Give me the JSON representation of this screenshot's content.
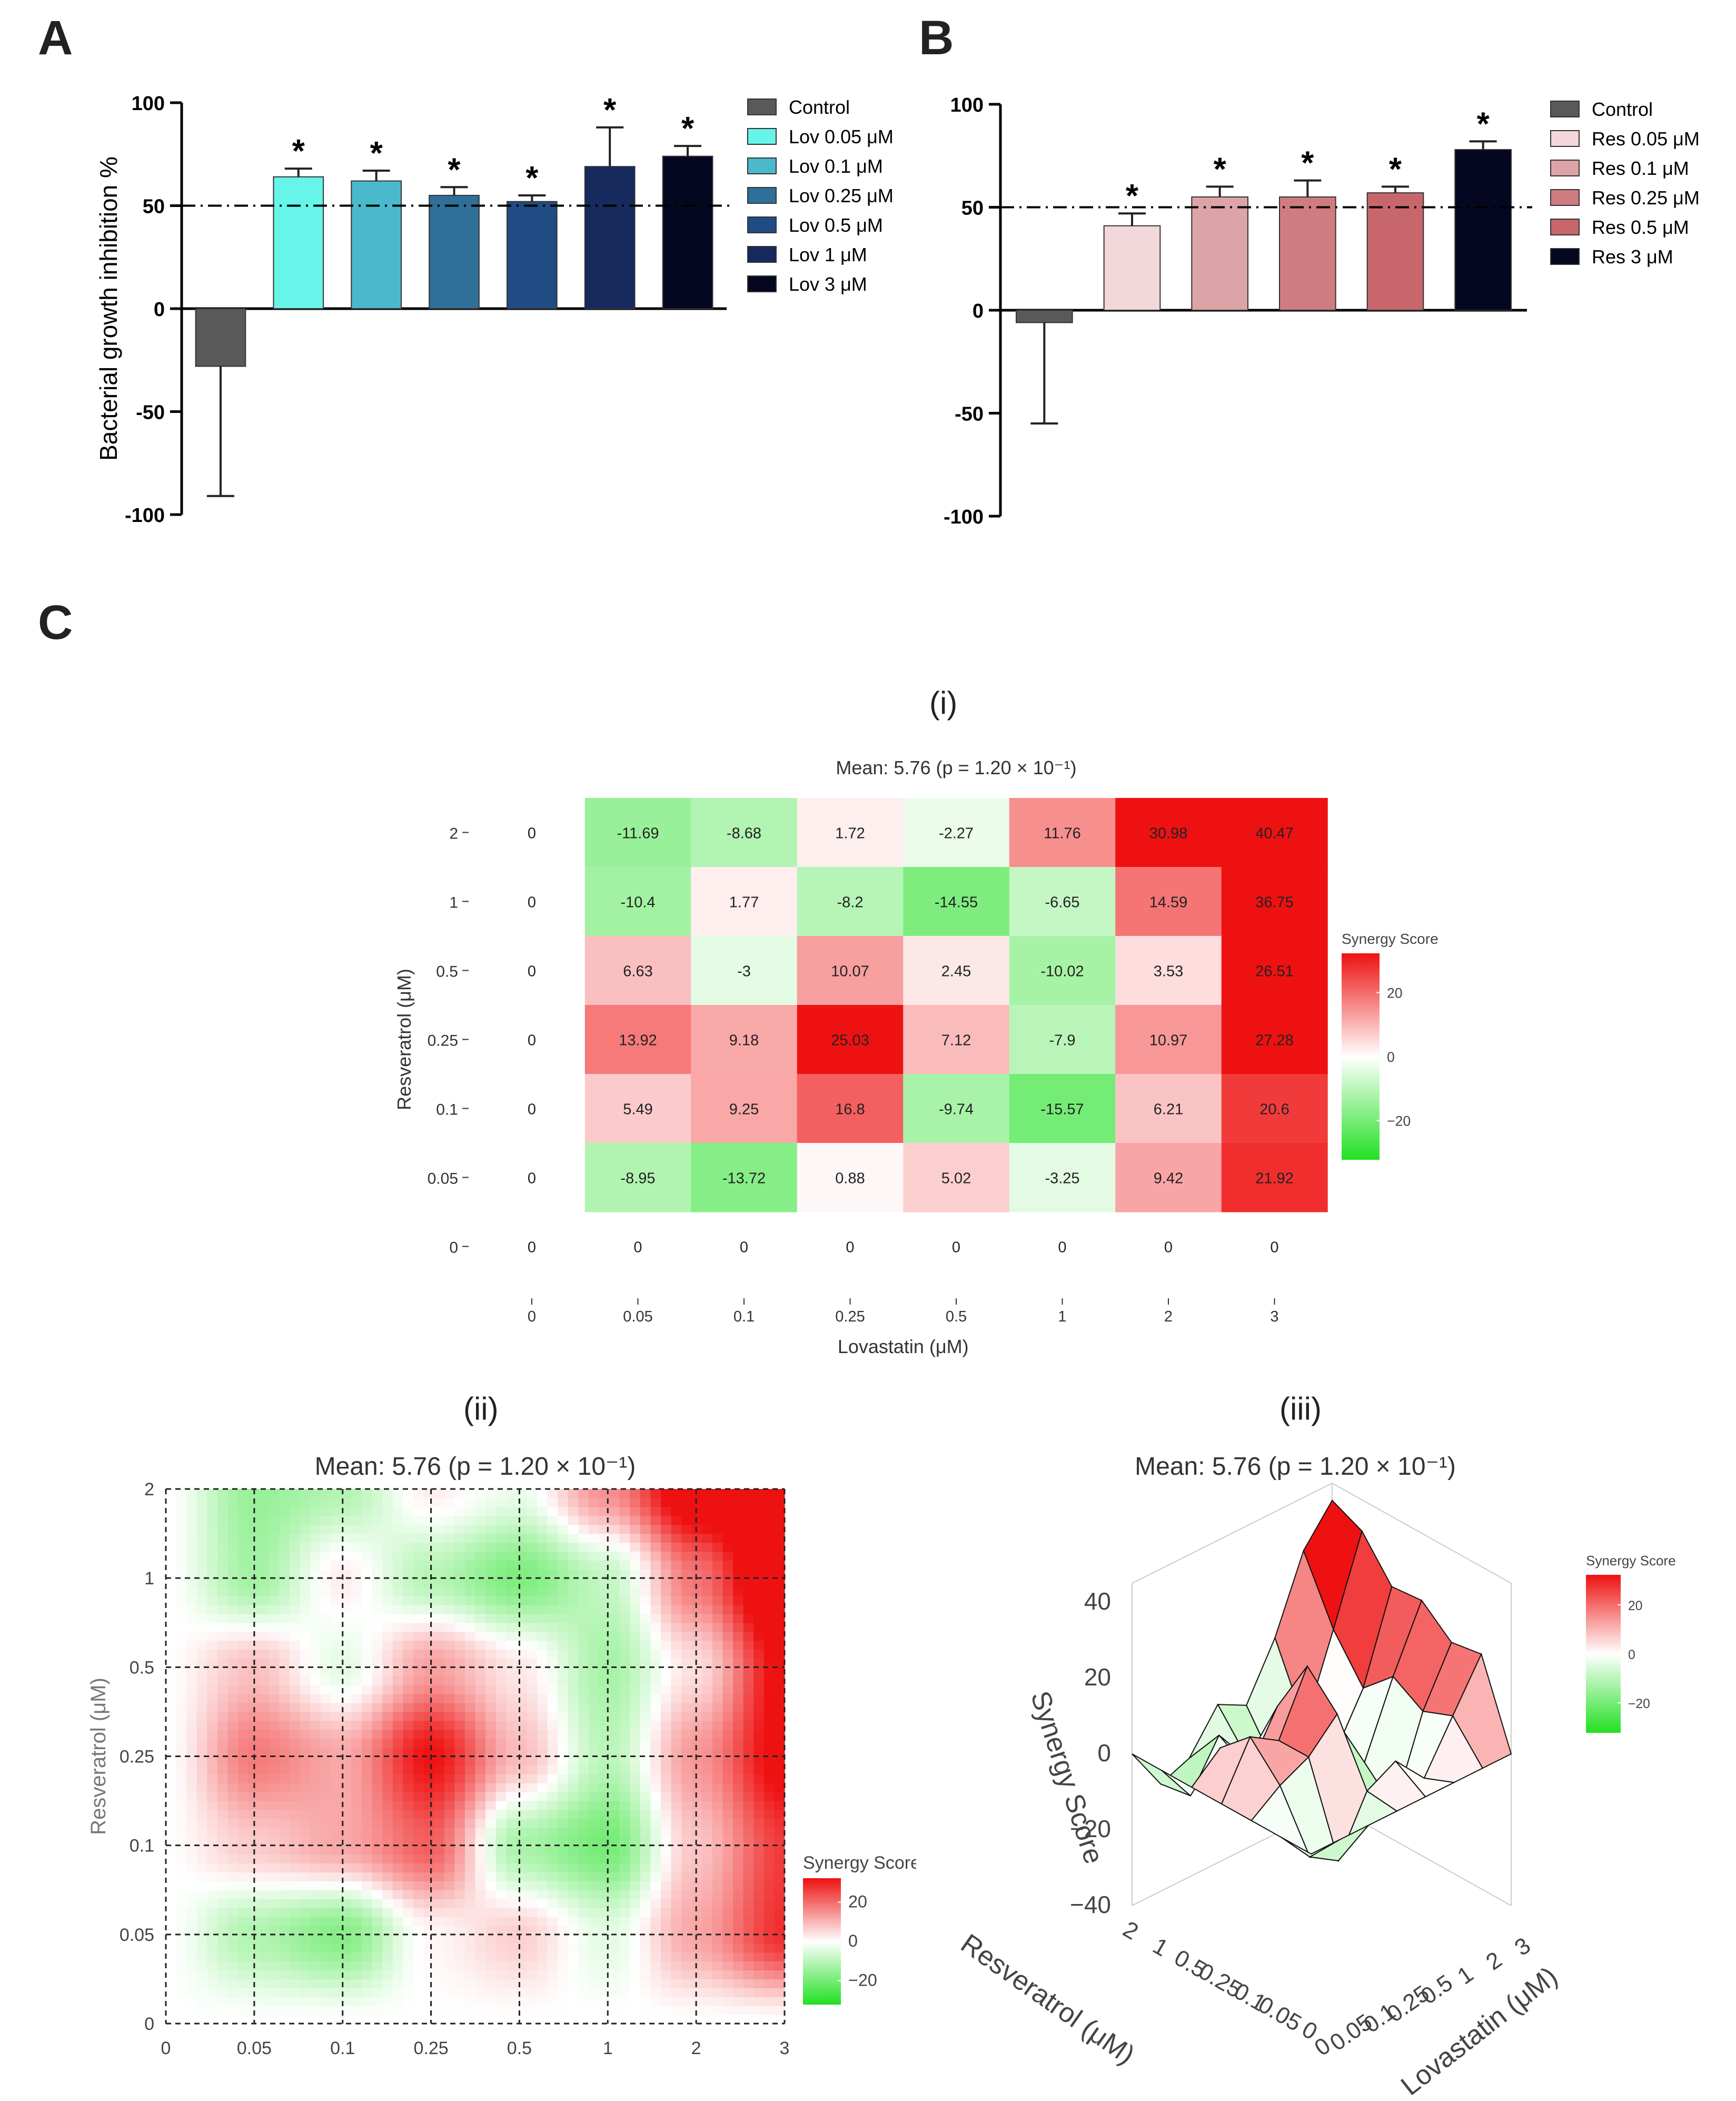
{
  "panels": {
    "a": "A",
    "b": "B",
    "c": "C",
    "i": "(i)",
    "ii": "(ii)",
    "iii": "(iii)"
  },
  "chart_data": [
    {
      "id": "A",
      "type": "bar",
      "ylabel": "Bacterial growth inhibition %",
      "ylim": [
        -100,
        100
      ],
      "yticks": [
        "100",
        "50",
        "0",
        "-50",
        "-100"
      ],
      "threshold": 50,
      "legend_position": "right",
      "star": "*",
      "series": [
        {
          "name": "Control",
          "value": -28,
          "err": 63,
          "color": "#595959",
          "star": false
        },
        {
          "name": "Lov 0.05 μM",
          "value": 64,
          "err": 4,
          "color": "#66f5e8",
          "star": true
        },
        {
          "name": "Lov 0.1 μM",
          "value": 62,
          "err": 5,
          "color": "#4ab9cb",
          "star": true
        },
        {
          "name": "Lov 0.25 μM",
          "value": 55,
          "err": 4,
          "color": "#2f6f99",
          "star": true
        },
        {
          "name": "Lov 0.5 μM",
          "value": 52,
          "err": 3,
          "color": "#214c83",
          "star": true
        },
        {
          "name": "Lov 1 μM",
          "value": 69,
          "err": 19,
          "color": "#172a5e",
          "star": true
        },
        {
          "name": "Lov 3 μM",
          "value": 74,
          "err": 5,
          "color": "#04071f",
          "star": true
        }
      ]
    },
    {
      "id": "B",
      "type": "bar",
      "ylabel": "",
      "ylim": [
        -100,
        100
      ],
      "yticks": [
        "100",
        "50",
        "0",
        "-50",
        "-100"
      ],
      "threshold": 50,
      "legend_position": "right",
      "star": "*",
      "series": [
        {
          "name": "Control",
          "value": -6,
          "err": 49,
          "color": "#595959",
          "star": false
        },
        {
          "name": "Res 0.05 μM",
          "value": 41,
          "err": 6,
          "color": "#f2d8da",
          "star": true
        },
        {
          "name": "Res 0.1 μM",
          "value": 55,
          "err": 5,
          "color": "#dda4a8",
          "star": true
        },
        {
          "name": "Res 0.25 μM",
          "value": 55,
          "err": 8,
          "color": "#cf7c80",
          "star": true
        },
        {
          "name": "Res 0.5 μM",
          "value": 57,
          "err": 3,
          "color": "#c8676b",
          "star": true
        },
        {
          "name": "Res 3 μM",
          "value": 78,
          "err": 4,
          "color": "#04071f",
          "star": true
        }
      ]
    },
    {
      "id": "C-i",
      "type": "heatmap",
      "title": "Mean: 5.76 (p = 1.20 × 10⁻¹)",
      "xlabel": "Lovastatin (μM)",
      "ylabel": "Resveratrol (μM)",
      "x": [
        "0",
        "0.05",
        "0.1",
        "0.25",
        "0.5",
        "1",
        "2",
        "3"
      ],
      "y": [
        "2",
        "1",
        "0.5",
        "0.25",
        "0.1",
        "0.05",
        "0"
      ],
      "values": [
        [
          "0",
          "-11.69",
          "-8.68",
          "1.72",
          "-2.27",
          "11.76",
          "30.98",
          "40.47"
        ],
        [
          "0",
          "-10.4",
          "1.77",
          "-8.2",
          "-14.55",
          "-6.65",
          "14.59",
          "36.75"
        ],
        [
          "0",
          "6.63",
          "-3",
          "10.07",
          "2.45",
          "-10.02",
          "3.53",
          "26.51"
        ],
        [
          "0",
          "13.92",
          "9.18",
          "25.03",
          "7.12",
          "-7.9",
          "10.97",
          "27.28"
        ],
        [
          "0",
          "5.49",
          "9.25",
          "16.8",
          "-9.74",
          "-15.57",
          "6.21",
          "20.6"
        ],
        [
          "0",
          "-8.95",
          "-13.72",
          "0.88",
          "5.02",
          "-3.25",
          "9.42",
          "21.92"
        ],
        [
          "0",
          "0",
          "0",
          "0",
          "0",
          "0",
          "0",
          "0"
        ]
      ],
      "legend_title": "Synergy Score",
      "legend_ticks": [
        "20",
        "0",
        "−20"
      ],
      "color_low": "#22e022",
      "color_mid": "#ffffff",
      "color_high": "#ee1111"
    },
    {
      "id": "C-ii",
      "type": "heatmap",
      "title": "Mean: 5.76 (p = 1.20 × 10⁻¹)",
      "ylabel": "Resveratrol (μM)",
      "x": [
        "0",
        "0.05",
        "0.1",
        "0.25",
        "0.5",
        "1",
        "2",
        "3"
      ],
      "y": [
        "2",
        "1",
        "0.5",
        "0.25",
        "0.1",
        "0.05",
        "0"
      ],
      "legend_title": "Synergy Score",
      "legend_ticks": [
        "20",
        "0",
        "−20"
      ]
    },
    {
      "id": "C-iii",
      "type": "surface",
      "title": "Mean: 5.76 (p = 1.20 × 10⁻¹)",
      "zlabel": "Synergy Score",
      "xlabel": "Resveratrol (μM)",
      "ylabel": "Lovastatin (μM)",
      "zticks": [
        "40",
        "20",
        "0",
        "−20",
        "−40"
      ],
      "res_ticks": [
        "2",
        "1",
        "0.5",
        "0.25",
        "0.1",
        "0.05",
        "0"
      ],
      "lov_ticks": [
        "0",
        "0.05",
        "0.1",
        "0.25",
        "0.5",
        "1",
        "2",
        "3"
      ],
      "legend_title": "Synergy Score",
      "legend_ticks": [
        "20",
        "0",
        "−20"
      ]
    }
  ]
}
